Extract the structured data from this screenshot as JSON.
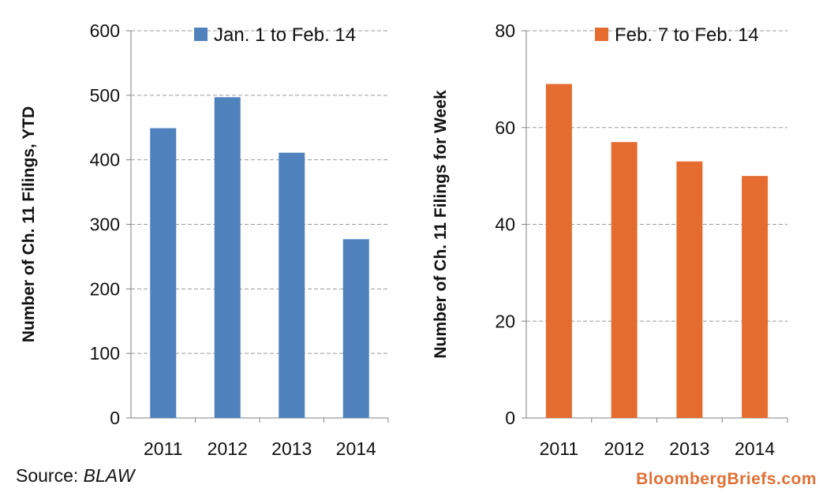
{
  "chart_data": [
    {
      "type": "bar",
      "categories": [
        "2011",
        "2012",
        "2013",
        "2014"
      ],
      "series": [
        {
          "name": "Jan. 1 to Feb. 14",
          "values": [
            449,
            497,
            411,
            277
          ]
        }
      ],
      "ylabel": "Number of Ch. 11 Filings, YTD",
      "ylim": [
        0,
        600
      ],
      "yticks": [
        "0",
        "100",
        "200",
        "300",
        "400",
        "500",
        "600"
      ],
      "color": "#4f81bd",
      "grid": "dashed-horizontal",
      "legend": "top"
    },
    {
      "type": "bar",
      "categories": [
        "2011",
        "2012",
        "2013",
        "2014"
      ],
      "series": [
        {
          "name": "Feb. 7 to Feb. 14",
          "values": [
            69,
            57,
            53,
            50
          ]
        }
      ],
      "ylabel": "Number of Ch. 11 Filings for Week",
      "ylim": [
        0,
        80
      ],
      "yticks": [
        "0",
        "20",
        "40",
        "60",
        "80"
      ],
      "color": "#e46c2f",
      "grid": "dashed-horizontal",
      "legend": "top"
    }
  ],
  "source_label": "Source: ",
  "source_name": "BLAW",
  "brand": "BloombergBriefs.com"
}
